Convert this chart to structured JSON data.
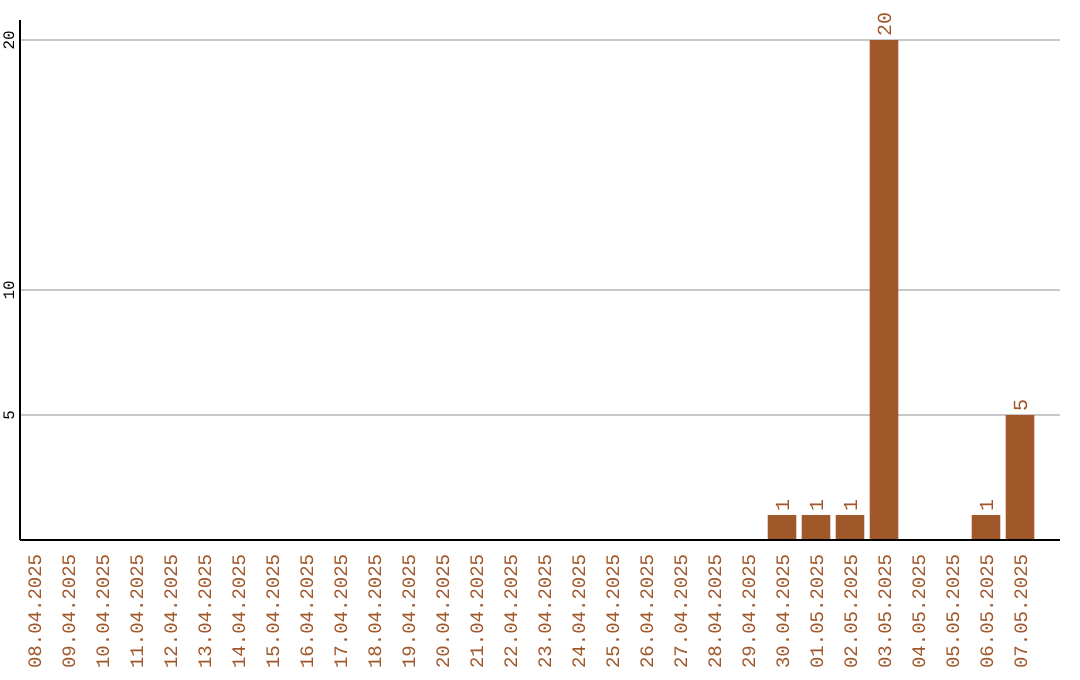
{
  "chart_data": {
    "type": "bar",
    "categories": [
      "08.04.2025",
      "09.04.2025",
      "10.04.2025",
      "11.04.2025",
      "12.04.2025",
      "13.04.2025",
      "14.04.2025",
      "15.04.2025",
      "16.04.2025",
      "17.04.2025",
      "18.04.2025",
      "19.04.2025",
      "20.04.2025",
      "21.04.2025",
      "22.04.2025",
      "23.04.2025",
      "24.04.2025",
      "25.04.2025",
      "26.04.2025",
      "27.04.2025",
      "28.04.2025",
      "29.04.2025",
      "30.04.2025",
      "01.05.2025",
      "02.05.2025",
      "03.05.2025",
      "04.05.2025",
      "05.05.2025",
      "06.05.2025",
      "07.05.2025"
    ],
    "values": [
      0,
      0,
      0,
      0,
      0,
      0,
      0,
      0,
      0,
      0,
      0,
      0,
      0,
      0,
      0,
      0,
      0,
      0,
      0,
      0,
      0,
      0,
      1,
      1,
      1,
      20,
      0,
      0,
      1,
      5
    ],
    "value_labels": [
      null,
      null,
      null,
      null,
      null,
      null,
      null,
      null,
      null,
      null,
      null,
      null,
      null,
      null,
      null,
      null,
      null,
      null,
      null,
      null,
      null,
      null,
      "1",
      "1",
      "1",
      "20",
      null,
      null,
      "1",
      "5"
    ],
    "color": "#a0572a",
    "ylim": [
      0,
      20.8
    ],
    "yticks": [
      5,
      10,
      20
    ],
    "grid": "y"
  }
}
